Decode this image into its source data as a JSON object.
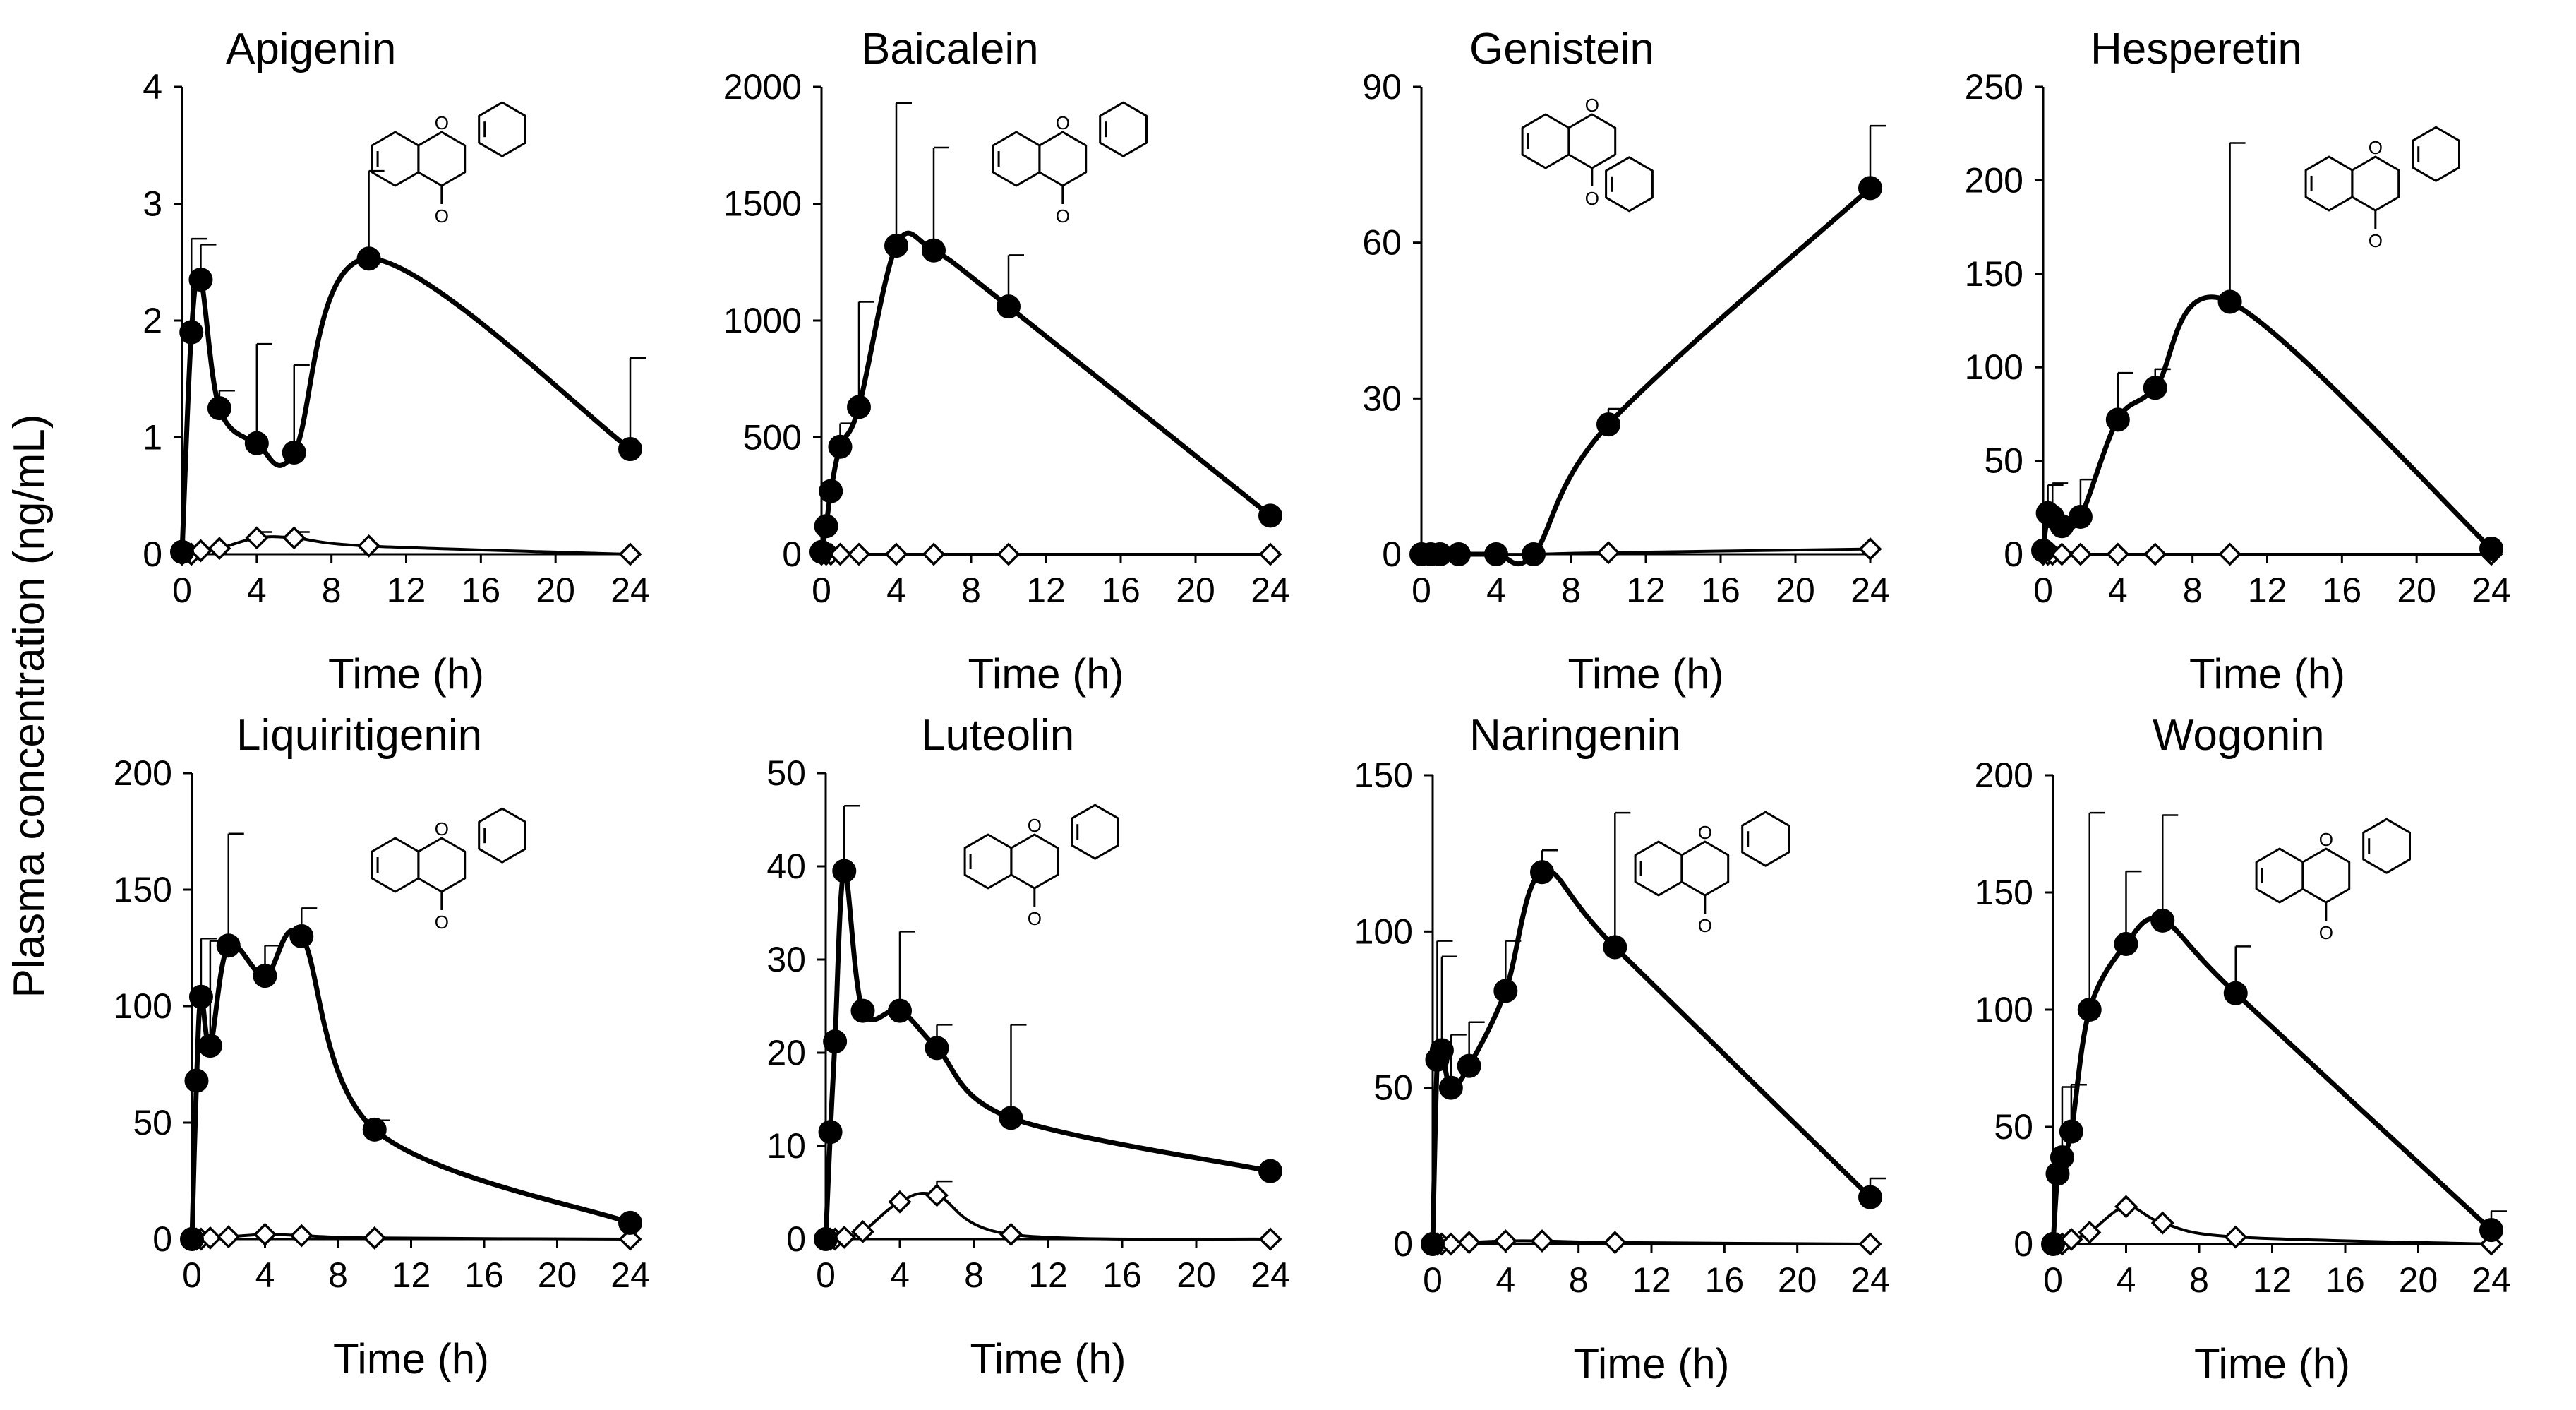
{
  "figure": {
    "y_axis_label": "Plasma concentration (ng/mL)"
  },
  "chart_data": [
    {
      "type": "line",
      "title": "Apigenin",
      "xlabel": "Time (h)",
      "ylabel": "Plasma concentration (ng/mL)",
      "xlim": [
        0,
        24
      ],
      "ylim": [
        0,
        4
      ],
      "xticks": [
        0,
        4,
        8,
        12,
        16,
        20,
        24
      ],
      "yticks": [
        0,
        1,
        2,
        3,
        4
      ],
      "x": [
        0,
        0.5,
        1,
        2,
        4,
        6,
        10,
        24
      ],
      "series": [
        {
          "marker": "filled-circle",
          "values": [
            0.02,
            1.9,
            2.35,
            1.25,
            0.95,
            0.87,
            2.53,
            0.9
          ],
          "errors": [
            0,
            0.8,
            0.3,
            0.15,
            0.85,
            0.75,
            0.75,
            0.78
          ]
        },
        {
          "marker": "open-diamond",
          "values": [
            0,
            0,
            0.03,
            0.05,
            0.14,
            0.14,
            0.07,
            0
          ],
          "errors": [
            0,
            0,
            0,
            0,
            0.05,
            0.05,
            0,
            0
          ]
        }
      ]
    },
    {
      "type": "line",
      "title": "Baicalein",
      "xlabel": "Time (h)",
      "ylabel": "Plasma concentration (ng/mL)",
      "xlim": [
        0,
        24
      ],
      "ylim": [
        0,
        2000
      ],
      "xticks": [
        0,
        4,
        8,
        12,
        16,
        20,
        24
      ],
      "yticks": [
        0,
        500,
        1000,
        1500,
        2000
      ],
      "x": [
        0,
        0.25,
        0.5,
        1,
        2,
        4,
        6,
        10,
        24
      ],
      "series": [
        {
          "marker": "filled-circle",
          "values": [
            10,
            120,
            270,
            460,
            630,
            1320,
            1300,
            1060,
            165
          ],
          "errors": [
            0,
            0,
            0,
            100,
            450,
            610,
            440,
            220,
            0
          ]
        },
        {
          "marker": "open-diamond",
          "values": [
            0,
            0,
            0,
            0,
            0,
            0,
            0,
            0,
            0
          ],
          "errors": [
            0,
            0,
            0,
            0,
            0,
            0,
            0,
            0,
            0
          ]
        }
      ]
    },
    {
      "type": "line",
      "title": "Genistein",
      "xlabel": "Time (h)",
      "ylabel": "Plasma concentration (ng/mL)",
      "xlim": [
        0,
        24
      ],
      "ylim": [
        0,
        90
      ],
      "xticks": [
        0,
        4,
        8,
        12,
        16,
        20,
        24
      ],
      "yticks": [
        0,
        30,
        60,
        90
      ],
      "x": [
        0,
        0.5,
        1,
        2,
        4,
        6,
        10,
        24
      ],
      "series": [
        {
          "marker": "filled-circle",
          "values": [
            0,
            0,
            0,
            0,
            0,
            0,
            25,
            70.5
          ],
          "errors": [
            0,
            0,
            0,
            0,
            0,
            0,
            3,
            12
          ]
        },
        {
          "marker": "open-diamond",
          "values": [
            0,
            0,
            0,
            0,
            0,
            0,
            0.3,
            1
          ],
          "errors": [
            0,
            0,
            0,
            0,
            0,
            0,
            0,
            0
          ]
        }
      ]
    },
    {
      "type": "line",
      "title": "Hesperetin",
      "xlabel": "Time (h)",
      "ylabel": "Plasma concentration (ng/mL)",
      "xlim": [
        0,
        24
      ],
      "ylim": [
        0,
        250
      ],
      "xticks": [
        0,
        4,
        8,
        12,
        16,
        20,
        24
      ],
      "yticks": [
        0,
        50,
        100,
        150,
        200,
        250
      ],
      "x": [
        0,
        0.25,
        0.5,
        1,
        2,
        4,
        6,
        10,
        24
      ],
      "series": [
        {
          "marker": "filled-circle",
          "values": [
            2,
            22,
            20,
            15,
            20,
            72,
            89,
            135,
            3
          ],
          "errors": [
            0,
            15,
            18,
            0,
            20,
            25,
            10,
            85,
            0
          ]
        },
        {
          "marker": "open-diamond",
          "values": [
            0,
            0,
            0,
            0,
            0,
            0,
            0,
            0,
            0
          ],
          "errors": [
            0,
            0,
            0,
            0,
            0,
            0,
            0,
            0,
            0
          ]
        }
      ]
    },
    {
      "type": "line",
      "title": "Liquiritigenin",
      "xlabel": "Time (h)",
      "ylabel": "Plasma concentration (ng/mL)",
      "xlim": [
        0,
        24
      ],
      "ylim": [
        0,
        200
      ],
      "xticks": [
        0,
        4,
        8,
        12,
        16,
        20,
        24
      ],
      "yticks": [
        0,
        50,
        100,
        150,
        200
      ],
      "x": [
        0,
        0.25,
        0.5,
        1,
        2,
        4,
        6,
        10,
        24
      ],
      "series": [
        {
          "marker": "filled-circle",
          "values": [
            0,
            68,
            104,
            83,
            126,
            113,
            130,
            47,
            7
          ],
          "errors": [
            0,
            0,
            25,
            45,
            48,
            13,
            12,
            4,
            0
          ]
        },
        {
          "marker": "open-diamond",
          "values": [
            0,
            0,
            0,
            0.5,
            1,
            2,
            1.5,
            0.5,
            0
          ],
          "errors": [
            0,
            0,
            0,
            0,
            0,
            0,
            0,
            0,
            0
          ]
        }
      ]
    },
    {
      "type": "line",
      "title": "Luteolin",
      "xlabel": "Time (h)",
      "ylabel": "Plasma concentration (ng/mL)",
      "xlim": [
        0,
        24
      ],
      "ylim": [
        0,
        50
      ],
      "xticks": [
        0,
        4,
        8,
        12,
        16,
        20,
        24
      ],
      "yticks": [
        0,
        10,
        20,
        30,
        40,
        50
      ],
      "x": [
        0,
        0.25,
        0.5,
        1,
        2,
        4,
        6,
        10,
        24
      ],
      "series": [
        {
          "marker": "filled-circle",
          "values": [
            0,
            11.5,
            21.2,
            39.5,
            24.5,
            24.5,
            20.5,
            13,
            7.3
          ],
          "errors": [
            0,
            0,
            0,
            7,
            0,
            8.5,
            2.5,
            10,
            0
          ]
        },
        {
          "marker": "open-diamond",
          "values": [
            0,
            0,
            0,
            0.2,
            0.8,
            4,
            4.7,
            0.5,
            0
          ],
          "errors": [
            0,
            0,
            0,
            0,
            0,
            0,
            1.5,
            0,
            0
          ]
        }
      ]
    },
    {
      "type": "line",
      "title": "Naringenin",
      "xlabel": "Time (h)",
      "ylabel": "Plasma concentration (ng/mL)",
      "xlim": [
        0,
        24
      ],
      "ylim": [
        0,
        150
      ],
      "xticks": [
        0,
        4,
        8,
        12,
        16,
        20,
        24
      ],
      "yticks": [
        0,
        50,
        100,
        150
      ],
      "x": [
        0,
        0.25,
        0.5,
        1,
        2,
        4,
        6,
        10,
        24
      ],
      "series": [
        {
          "marker": "filled-circle",
          "values": [
            0,
            59,
            62,
            50,
            57,
            81,
            119,
            95,
            15
          ],
          "errors": [
            0,
            38,
            30,
            17,
            14,
            16,
            7,
            43,
            6
          ]
        },
        {
          "marker": "open-diamond",
          "values": [
            0,
            0,
            0,
            0,
            0.5,
            1,
            1,
            0.5,
            0
          ],
          "errors": [
            0,
            0,
            0,
            0,
            0,
            0,
            0,
            0,
            0
          ]
        }
      ]
    },
    {
      "type": "line",
      "title": "Wogonin",
      "xlabel": "Time (h)",
      "ylabel": "Plasma concentration (ng/mL)",
      "xlim": [
        0,
        24
      ],
      "ylim": [
        0,
        200
      ],
      "xticks": [
        0,
        4,
        8,
        12,
        16,
        20,
        24
      ],
      "yticks": [
        0,
        50,
        100,
        150,
        200
      ],
      "x": [
        0,
        0.25,
        0.5,
        1,
        2,
        4,
        6,
        10,
        24
      ],
      "series": [
        {
          "marker": "filled-circle",
          "values": [
            0,
            30,
            37,
            48,
            100,
            128,
            138,
            107,
            6
          ],
          "errors": [
            0,
            0,
            30,
            20,
            84,
            31,
            45,
            20,
            8
          ]
        },
        {
          "marker": "open-diamond",
          "values": [
            0,
            0,
            0,
            2,
            5,
            16,
            9,
            3,
            0
          ],
          "errors": [
            0,
            0,
            0,
            0,
            0,
            0,
            0,
            0,
            0
          ]
        }
      ]
    }
  ]
}
